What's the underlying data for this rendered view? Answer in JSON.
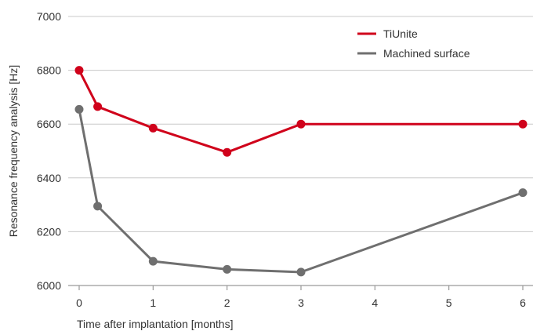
{
  "chart_data": {
    "type": "line",
    "title": "",
    "xlabel": "Time after implantation [months]",
    "ylabel": "Resonance frequency analysis [Hz]",
    "xlim": [
      0,
      6
    ],
    "ylim": [
      6000,
      7000
    ],
    "x_ticks": [
      "0",
      "1",
      "2",
      "3",
      "4",
      "5",
      "6"
    ],
    "y_ticks": [
      "7000",
      "6800",
      "6600",
      "6400",
      "6200",
      "6000"
    ],
    "grid": "horizontal",
    "legend_position": "top-right",
    "series": [
      {
        "name": "TiUnite",
        "color": "#d0021b",
        "x": [
          0,
          0.25,
          1,
          2,
          3,
          6
        ],
        "values": [
          6800,
          6665,
          6585,
          6495,
          6600,
          6600
        ]
      },
      {
        "name": "Machined surface",
        "color": "#6f6f6f",
        "x": [
          0,
          0.25,
          1,
          2,
          3,
          6
        ],
        "values": [
          6655,
          6295,
          6090,
          6060,
          6050,
          6345
        ]
      }
    ]
  }
}
